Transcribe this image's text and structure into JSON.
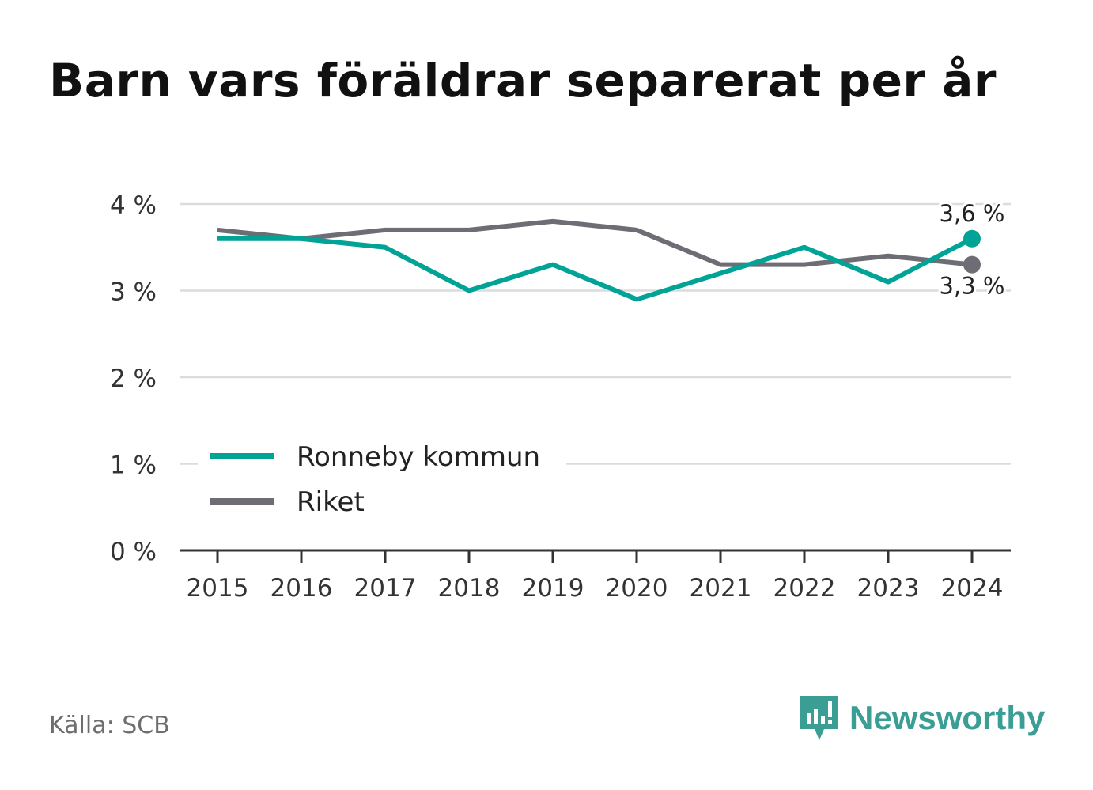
{
  "title": "Barn vars föräldrar separerat per år",
  "source": "Källa: SCB",
  "brand": {
    "name": "Newsworthy",
    "icon": "newsworthy-logo-icon"
  },
  "colors": {
    "series_local": "#00a396",
    "series_national": "#6e6c75",
    "grid": "#dcdcdc",
    "axis": "#333333",
    "brand": "#3a9e95"
  },
  "chart_data": {
    "type": "line",
    "title": "Barn vars föräldrar separerat per år",
    "x": [
      "2015",
      "2016",
      "2017",
      "2018",
      "2019",
      "2020",
      "2021",
      "2022",
      "2023",
      "2024"
    ],
    "series": [
      {
        "name": "Ronneby kommun",
        "values": [
          3.6,
          3.6,
          3.5,
          3.0,
          3.3,
          2.9,
          3.2,
          3.5,
          3.1,
          3.6
        ],
        "end_label": "3,6 %"
      },
      {
        "name": "Riket",
        "values": [
          3.7,
          3.6,
          3.7,
          3.7,
          3.8,
          3.7,
          3.3,
          3.3,
          3.4,
          3.3
        ],
        "end_label": "3,3 %"
      }
    ],
    "y_ticks": [
      {
        "value": 0,
        "label": "0 %"
      },
      {
        "value": 1,
        "label": "1 %"
      },
      {
        "value": 2,
        "label": "2 %"
      },
      {
        "value": 3,
        "label": "3 %"
      },
      {
        "value": 4,
        "label": "4 %"
      }
    ],
    "ylim": [
      0,
      4
    ],
    "grid": true,
    "legend": "bottom-left"
  }
}
